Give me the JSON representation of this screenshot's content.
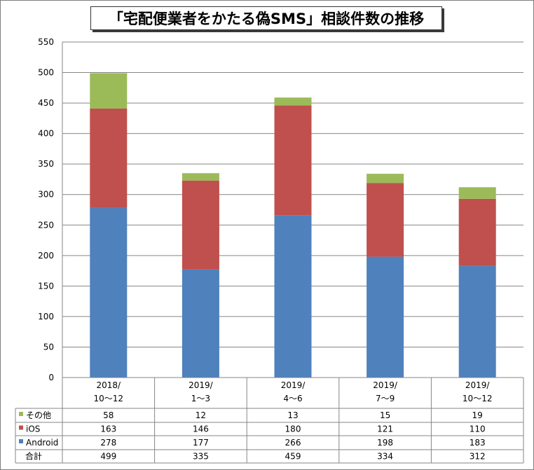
{
  "title": "「宅配便業者をかたる偽SMS」相談件数の推移",
  "chart_data": {
    "type": "bar",
    "stacked": true,
    "title": "「宅配便業者をかたる偽SMS」相談件数の推移",
    "categories": [
      [
        "2018/",
        "10〜12"
      ],
      [
        "2019/",
        "1〜3"
      ],
      [
        "2019/",
        "4〜6"
      ],
      [
        "2019/",
        "7〜9"
      ],
      [
        "2019/",
        "10〜12"
      ]
    ],
    "ylim": [
      0,
      550
    ],
    "yticks": [
      0,
      50,
      100,
      150,
      200,
      250,
      300,
      350,
      400,
      450,
      500,
      550
    ],
    "grid": true,
    "series": [
      {
        "name": "Android",
        "color": "#4f81bd",
        "values": [
          278,
          177,
          266,
          198,
          183
        ]
      },
      {
        "name": "iOS",
        "color": "#c0504d",
        "values": [
          163,
          146,
          180,
          121,
          110
        ]
      },
      {
        "name": "その他",
        "color": "#9bbb59",
        "values": [
          58,
          12,
          13,
          15,
          19
        ]
      }
    ],
    "table_rows_order": [
      "その他",
      "iOS",
      "Android"
    ],
    "total": {
      "name": "合計",
      "values": [
        499,
        335,
        459,
        334,
        312
      ]
    }
  }
}
